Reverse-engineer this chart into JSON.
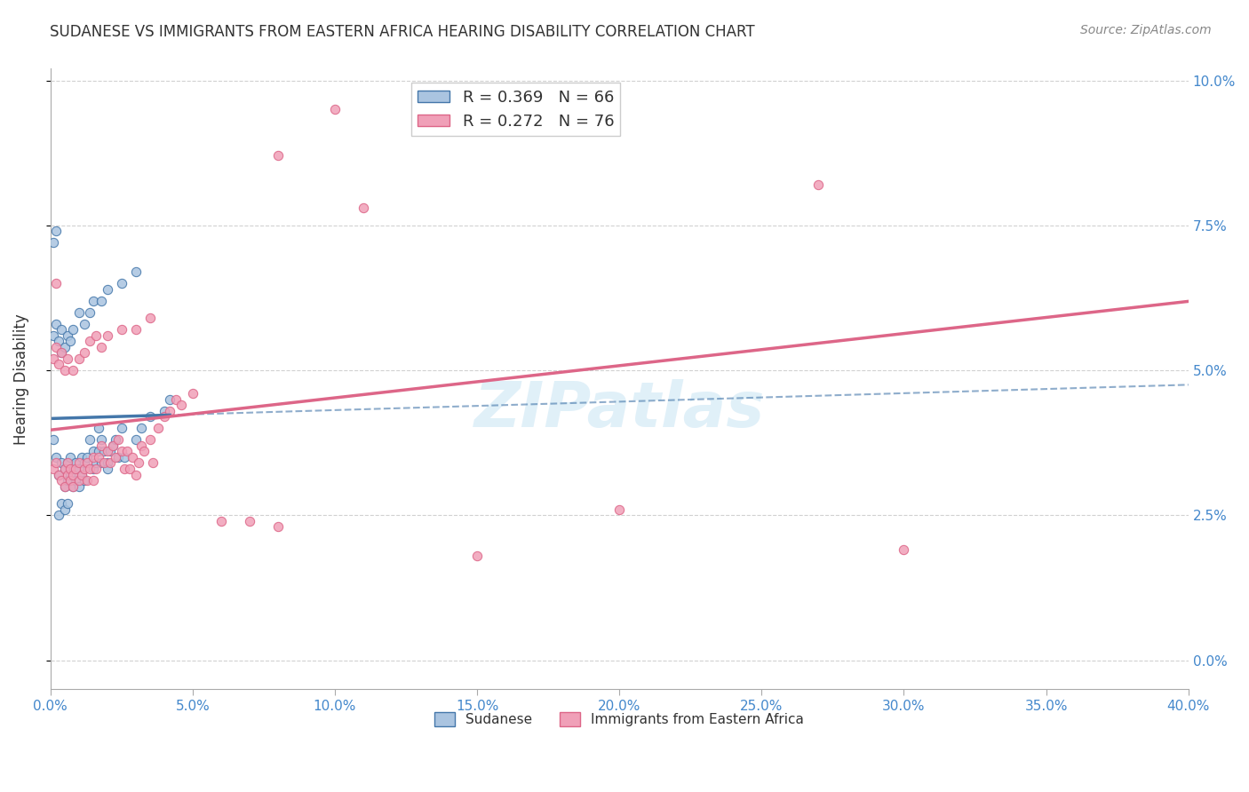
{
  "title": "SUDANESE VS IMMIGRANTS FROM EASTERN AFRICA HEARING DISABILITY CORRELATION CHART",
  "source": "Source: ZipAtlas.com",
  "ylabel": "Hearing Disability",
  "xlim": [
    0,
    0.4
  ],
  "ylim": [
    -0.005,
    0.102
  ],
  "xticks": [
    0.0,
    0.05,
    0.1,
    0.15,
    0.2,
    0.25,
    0.3,
    0.35,
    0.4
  ],
  "yticks": [
    0.0,
    0.025,
    0.05,
    0.075,
    0.1
  ],
  "blue_R": 0.369,
  "blue_N": 66,
  "pink_R": 0.272,
  "pink_N": 76,
  "blue_color": "#aac4e0",
  "pink_color": "#f0a0b8",
  "blue_line_color": "#4477aa",
  "pink_line_color": "#dd6688",
  "blue_scatter": [
    [
      0.001,
      0.038
    ],
    [
      0.002,
      0.035
    ],
    [
      0.003,
      0.032
    ],
    [
      0.004,
      0.034
    ],
    [
      0.005,
      0.033
    ],
    [
      0.005,
      0.03
    ],
    [
      0.006,
      0.031
    ],
    [
      0.006,
      0.034
    ],
    [
      0.007,
      0.035
    ],
    [
      0.007,
      0.032
    ],
    [
      0.008,
      0.033
    ],
    [
      0.008,
      0.03
    ],
    [
      0.009,
      0.034
    ],
    [
      0.009,
      0.031
    ],
    [
      0.01,
      0.033
    ],
    [
      0.01,
      0.03
    ],
    [
      0.011,
      0.035
    ],
    [
      0.011,
      0.032
    ],
    [
      0.012,
      0.034
    ],
    [
      0.012,
      0.031
    ],
    [
      0.013,
      0.035
    ],
    [
      0.014,
      0.038
    ],
    [
      0.015,
      0.036
    ],
    [
      0.015,
      0.033
    ],
    [
      0.016,
      0.034
    ],
    [
      0.017,
      0.04
    ],
    [
      0.017,
      0.036
    ],
    [
      0.018,
      0.034
    ],
    [
      0.018,
      0.038
    ],
    [
      0.019,
      0.036
    ],
    [
      0.02,
      0.034
    ],
    [
      0.02,
      0.033
    ],
    [
      0.021,
      0.036
    ],
    [
      0.022,
      0.037
    ],
    [
      0.023,
      0.038
    ],
    [
      0.024,
      0.035
    ],
    [
      0.025,
      0.04
    ],
    [
      0.026,
      0.035
    ],
    [
      0.03,
      0.038
    ],
    [
      0.032,
      0.04
    ],
    [
      0.035,
      0.042
    ],
    [
      0.04,
      0.043
    ],
    [
      0.042,
      0.045
    ],
    [
      0.001,
      0.056
    ],
    [
      0.002,
      0.058
    ],
    [
      0.003,
      0.055
    ],
    [
      0.004,
      0.053
    ],
    [
      0.004,
      0.057
    ],
    [
      0.005,
      0.054
    ],
    [
      0.006,
      0.056
    ],
    [
      0.007,
      0.055
    ],
    [
      0.008,
      0.057
    ],
    [
      0.01,
      0.06
    ],
    [
      0.012,
      0.058
    ],
    [
      0.014,
      0.06
    ],
    [
      0.015,
      0.062
    ],
    [
      0.018,
      0.062
    ],
    [
      0.02,
      0.064
    ],
    [
      0.025,
      0.065
    ],
    [
      0.03,
      0.067
    ],
    [
      0.001,
      0.072
    ],
    [
      0.002,
      0.074
    ],
    [
      0.003,
      0.025
    ],
    [
      0.004,
      0.027
    ],
    [
      0.005,
      0.026
    ],
    [
      0.006,
      0.027
    ]
  ],
  "pink_scatter": [
    [
      0.001,
      0.033
    ],
    [
      0.002,
      0.034
    ],
    [
      0.003,
      0.032
    ],
    [
      0.004,
      0.031
    ],
    [
      0.005,
      0.033
    ],
    [
      0.005,
      0.03
    ],
    [
      0.006,
      0.032
    ],
    [
      0.006,
      0.034
    ],
    [
      0.007,
      0.033
    ],
    [
      0.007,
      0.031
    ],
    [
      0.008,
      0.032
    ],
    [
      0.008,
      0.03
    ],
    [
      0.009,
      0.033
    ],
    [
      0.01,
      0.031
    ],
    [
      0.01,
      0.034
    ],
    [
      0.011,
      0.032
    ],
    [
      0.012,
      0.033
    ],
    [
      0.013,
      0.031
    ],
    [
      0.013,
      0.034
    ],
    [
      0.014,
      0.033
    ],
    [
      0.015,
      0.035
    ],
    [
      0.015,
      0.031
    ],
    [
      0.016,
      0.033
    ],
    [
      0.017,
      0.035
    ],
    [
      0.018,
      0.037
    ],
    [
      0.019,
      0.034
    ],
    [
      0.02,
      0.036
    ],
    [
      0.021,
      0.034
    ],
    [
      0.022,
      0.037
    ],
    [
      0.023,
      0.035
    ],
    [
      0.024,
      0.038
    ],
    [
      0.025,
      0.036
    ],
    [
      0.026,
      0.033
    ],
    [
      0.027,
      0.036
    ],
    [
      0.028,
      0.033
    ],
    [
      0.029,
      0.035
    ],
    [
      0.03,
      0.032
    ],
    [
      0.031,
      0.034
    ],
    [
      0.032,
      0.037
    ],
    [
      0.033,
      0.036
    ],
    [
      0.035,
      0.038
    ],
    [
      0.036,
      0.034
    ],
    [
      0.038,
      0.04
    ],
    [
      0.04,
      0.042
    ],
    [
      0.042,
      0.043
    ],
    [
      0.044,
      0.045
    ],
    [
      0.046,
      0.044
    ],
    [
      0.05,
      0.046
    ],
    [
      0.001,
      0.052
    ],
    [
      0.002,
      0.054
    ],
    [
      0.003,
      0.051
    ],
    [
      0.004,
      0.053
    ],
    [
      0.005,
      0.05
    ],
    [
      0.006,
      0.052
    ],
    [
      0.008,
      0.05
    ],
    [
      0.01,
      0.052
    ],
    [
      0.012,
      0.053
    ],
    [
      0.014,
      0.055
    ],
    [
      0.016,
      0.056
    ],
    [
      0.018,
      0.054
    ],
    [
      0.02,
      0.056
    ],
    [
      0.025,
      0.057
    ],
    [
      0.03,
      0.057
    ],
    [
      0.035,
      0.059
    ],
    [
      0.1,
      0.095
    ],
    [
      0.15,
      0.092
    ],
    [
      0.06,
      0.024
    ],
    [
      0.07,
      0.024
    ],
    [
      0.08,
      0.023
    ],
    [
      0.15,
      0.018
    ],
    [
      0.2,
      0.026
    ],
    [
      0.3,
      0.019
    ],
    [
      0.27,
      0.082
    ],
    [
      0.11,
      0.078
    ],
    [
      0.08,
      0.087
    ],
    [
      0.002,
      0.065
    ]
  ],
  "watermark": "ZIPatlas",
  "legend_label_blue": "Sudanese",
  "legend_label_pink": "Immigrants from Eastern Africa"
}
